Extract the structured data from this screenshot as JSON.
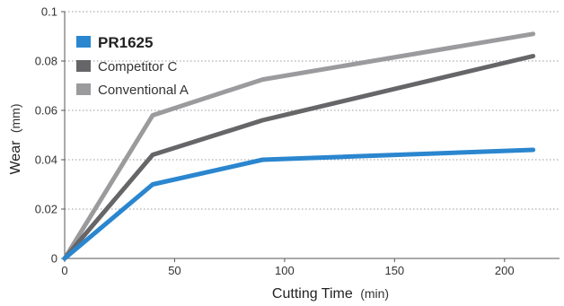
{
  "chart_data": {
    "type": "line",
    "xlabel": "Cutting Time",
    "xlabel_unit": "(min)",
    "ylabel": "Wear",
    "ylabel_unit": "(mm)",
    "xlim": [
      0,
      225
    ],
    "ylim": [
      0,
      0.1
    ],
    "x_ticks": [
      0,
      50,
      100,
      150,
      200
    ],
    "y_ticks": [
      0,
      0.02,
      0.04,
      0.06,
      0.08,
      0.1
    ],
    "x_tick_labels": [
      "0",
      "50",
      "100",
      "150",
      "200"
    ],
    "y_tick_labels": [
      "0",
      "0.02",
      "0.04",
      "0.06",
      "0.08",
      "0.1"
    ],
    "grid": "horizontal-dotted",
    "legend_position": "top-left",
    "series": [
      {
        "name": "PR1625",
        "color": "#2a86cf",
        "emphasis": true,
        "x": [
          0,
          40,
          90,
          213
        ],
        "y": [
          0,
          0.03,
          0.04,
          0.044
        ]
      },
      {
        "name": "Competitor C",
        "color": "#666669",
        "emphasis": false,
        "x": [
          0,
          40,
          90,
          213
        ],
        "y": [
          0,
          0.042,
          0.056,
          0.082
        ]
      },
      {
        "name": "Conventional A",
        "color": "#9b9b9e",
        "emphasis": false,
        "x": [
          0,
          40,
          90,
          213
        ],
        "y": [
          0,
          0.058,
          0.0725,
          0.091
        ]
      }
    ]
  }
}
